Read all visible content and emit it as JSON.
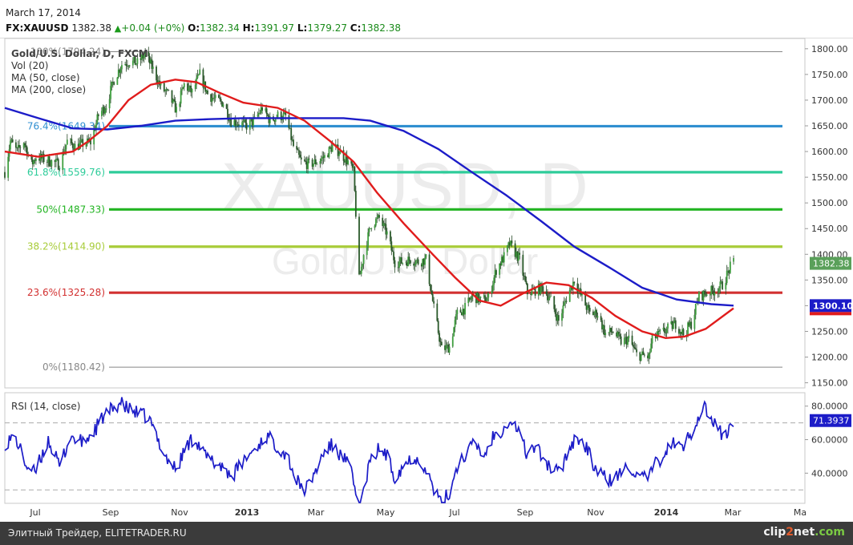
{
  "header": {
    "date": "March 17, 2014",
    "symbol": "FX:XAUUSD",
    "last": "1382.38",
    "change": "+0.04 (+0%)",
    "o_label": "O:",
    "open": "1382.34",
    "h_label": "H:",
    "high": "1391.97",
    "l_label": "L:",
    "low": "1379.27",
    "c_label": "C:",
    "close": "1382.38"
  },
  "legend": {
    "title": "Gold/U.S. Dollar, D, FXCM",
    "vol": "Vol (20)",
    "ma50": "MA (50, close)",
    "ma200": "MA (200, close)",
    "rsi": "RSI (14, close)"
  },
  "watermark": {
    "symbol": "XAUUSD, D",
    "name": "Gold/U.S. Dollar"
  },
  "footer": {
    "text": "Элитный Трейдер, ELITETRADER.RU",
    "logo": "clip2net.com"
  },
  "chart_data": [
    {
      "type": "candlestick",
      "title": "Gold/U.S. Dollar, D, FXCM",
      "ylim": [
        1140,
        1820
      ],
      "y_ticks": [
        1150,
        1200,
        1250,
        1300,
        1350,
        1400,
        1450,
        1500,
        1550,
        1600,
        1650,
        1700,
        1750,
        1800
      ],
      "x_ticks": [
        "Jul",
        "Sep",
        "Nov",
        "2013",
        "Mar",
        "May",
        "Jul",
        "Sep",
        "Nov",
        "2014",
        "Mar",
        "Ma"
      ],
      "last_price_label": "1382.38",
      "ma200_label": "1300.10",
      "fibonacci": [
        {
          "label": "100%(1794.24)",
          "value": 1794.24,
          "color": "#888888"
        },
        {
          "label": "76.4%(1649.34)",
          "value": 1649.34,
          "color": "#2f8fd0"
        },
        {
          "label": "61.8%(1559.76)",
          "value": 1559.76,
          "color": "#2ecc9a"
        },
        {
          "label": "50%(1487.33)",
          "value": 1487.33,
          "color": "#22b422"
        },
        {
          "label": "38.2%(1414.90)",
          "value": 1414.9,
          "color": "#a8cc3a"
        },
        {
          "label": "23.6%(1325.28)",
          "value": 1325.28,
          "color": "#d23030"
        },
        {
          "label": "0%(1180.42)",
          "value": 1180.42,
          "color": "#888888"
        }
      ],
      "price_path": [
        [
          "2012-06-01",
          1560
        ],
        [
          "2012-06-06",
          1620
        ],
        [
          "2012-06-12",
          1600
        ],
        [
          "2012-06-18",
          1620
        ],
        [
          "2012-06-25",
          1575
        ],
        [
          "2012-06-29",
          1590
        ],
        [
          "2012-07-06",
          1585
        ],
        [
          "2012-07-13",
          1580
        ],
        [
          "2012-07-20",
          1575
        ],
        [
          "2012-07-27",
          1620
        ],
        [
          "2012-08-03",
          1610
        ],
        [
          "2012-08-10",
          1615
        ],
        [
          "2012-08-17",
          1618
        ],
        [
          "2012-08-24",
          1670
        ],
        [
          "2012-08-31",
          1690
        ],
        [
          "2012-09-07",
          1740
        ],
        [
          "2012-09-14",
          1770
        ],
        [
          "2012-09-21",
          1775
        ],
        [
          "2012-09-28",
          1772
        ],
        [
          "2012-10-05",
          1790
        ],
        [
          "2012-10-12",
          1760
        ],
        [
          "2012-10-19",
          1725
        ],
        [
          "2012-10-26",
          1710
        ],
        [
          "2012-11-02",
          1680
        ],
        [
          "2012-11-09",
          1730
        ],
        [
          "2012-11-16",
          1715
        ],
        [
          "2012-11-23",
          1750
        ],
        [
          "2012-11-30",
          1712
        ],
        [
          "2012-12-07",
          1700
        ],
        [
          "2012-12-14",
          1695
        ],
        [
          "2012-12-21",
          1660
        ],
        [
          "2012-12-28",
          1656
        ],
        [
          "2013-01-04",
          1650
        ],
        [
          "2013-01-11",
          1660
        ],
        [
          "2013-01-18",
          1685
        ],
        [
          "2013-01-25",
          1660
        ],
        [
          "2013-02-01",
          1670
        ],
        [
          "2013-02-08",
          1668
        ],
        [
          "2013-02-15",
          1610
        ],
        [
          "2013-02-22",
          1580
        ],
        [
          "2013-03-01",
          1575
        ],
        [
          "2013-03-08",
          1580
        ],
        [
          "2013-03-15",
          1590
        ],
        [
          "2013-03-22",
          1610
        ],
        [
          "2013-03-29",
          1598
        ],
        [
          "2013-04-05",
          1580
        ],
        [
          "2013-04-10",
          1560
        ],
        [
          "2013-04-12",
          1480
        ],
        [
          "2013-04-15",
          1350
        ],
        [
          "2013-04-19",
          1400
        ],
        [
          "2013-04-26",
          1460
        ],
        [
          "2013-05-03",
          1470
        ],
        [
          "2013-05-10",
          1440
        ],
        [
          "2013-05-17",
          1385
        ],
        [
          "2013-05-24",
          1385
        ],
        [
          "2013-05-31",
          1390
        ],
        [
          "2013-06-07",
          1385
        ],
        [
          "2013-06-14",
          1390
        ],
        [
          "2013-06-21",
          1295
        ],
        [
          "2013-06-28",
          1215
        ],
        [
          "2013-07-05",
          1220
        ],
        [
          "2013-07-12",
          1285
        ],
        [
          "2013-07-19",
          1295
        ],
        [
          "2013-07-26",
          1320
        ],
        [
          "2013-08-02",
          1310
        ],
        [
          "2013-08-09",
          1315
        ],
        [
          "2013-08-16",
          1370
        ],
        [
          "2013-08-23",
          1395
        ],
        [
          "2013-08-28",
          1420
        ],
        [
          "2013-09-06",
          1390
        ],
        [
          "2013-09-13",
          1325
        ],
        [
          "2013-09-20",
          1330
        ],
        [
          "2013-09-27",
          1335
        ],
        [
          "2013-10-04",
          1310
        ],
        [
          "2013-10-11",
          1270
        ],
        [
          "2013-10-18",
          1315
        ],
        [
          "2013-10-25",
          1350
        ],
        [
          "2013-11-01",
          1315
        ],
        [
          "2013-11-08",
          1285
        ],
        [
          "2013-11-15",
          1285
        ],
        [
          "2013-11-22",
          1245
        ],
        [
          "2013-11-29",
          1250
        ],
        [
          "2013-12-06",
          1230
        ],
        [
          "2013-12-13",
          1235
        ],
        [
          "2013-12-20",
          1205
        ],
        [
          "2013-12-31",
          1200
        ],
        [
          "2014-01-03",
          1235
        ],
        [
          "2014-01-10",
          1245
        ],
        [
          "2014-01-17",
          1255
        ],
        [
          "2014-01-24",
          1265
        ],
        [
          "2014-01-31",
          1245
        ],
        [
          "2014-02-07",
          1265
        ],
        [
          "2014-02-14",
          1318
        ],
        [
          "2014-02-21",
          1325
        ],
        [
          "2014-02-28",
          1330
        ],
        [
          "2014-03-07",
          1340
        ],
        [
          "2014-03-14",
          1375
        ],
        [
          "2014-03-17",
          1382.38
        ]
      ],
      "ma50_path": [
        [
          "2012-06-01",
          1600
        ],
        [
          "2012-07-01",
          1590
        ],
        [
          "2012-08-01",
          1600
        ],
        [
          "2012-08-15",
          1620
        ],
        [
          "2012-09-01",
          1650
        ],
        [
          "2012-09-20",
          1700
        ],
        [
          "2012-10-10",
          1730
        ],
        [
          "2012-11-01",
          1740
        ],
        [
          "2012-11-20",
          1735
        ],
        [
          "2012-12-10",
          1715
        ],
        [
          "2013-01-01",
          1695
        ],
        [
          "2013-02-01",
          1685
        ],
        [
          "2013-02-25",
          1660
        ],
        [
          "2013-03-20",
          1620
        ],
        [
          "2013-04-10",
          1580
        ],
        [
          "2013-05-01",
          1520
        ],
        [
          "2013-05-25",
          1460
        ],
        [
          "2013-06-20",
          1400
        ],
        [
          "2013-07-10",
          1355
        ],
        [
          "2013-08-01",
          1310
        ],
        [
          "2013-08-20",
          1300
        ],
        [
          "2013-09-10",
          1325
        ],
        [
          "2013-09-30",
          1345
        ],
        [
          "2013-10-20",
          1340
        ],
        [
          "2013-11-10",
          1315
        ],
        [
          "2013-12-01",
          1280
        ],
        [
          "2013-12-25",
          1250
        ],
        [
          "2014-01-15",
          1237
        ],
        [
          "2014-02-01",
          1240
        ],
        [
          "2014-02-20",
          1255
        ],
        [
          "2014-03-17",
          1295
        ]
      ],
      "ma200_path": [
        [
          "2012-06-01",
          1685
        ],
        [
          "2012-07-01",
          1665
        ],
        [
          "2012-08-01",
          1645
        ],
        [
          "2012-09-01",
          1643
        ],
        [
          "2012-10-01",
          1650
        ],
        [
          "2012-11-01",
          1660
        ],
        [
          "2012-12-01",
          1663
        ],
        [
          "2013-01-01",
          1665
        ],
        [
          "2013-02-01",
          1665
        ],
        [
          "2013-03-01",
          1665
        ],
        [
          "2013-04-01",
          1665
        ],
        [
          "2013-04-25",
          1660
        ],
        [
          "2013-05-25",
          1640
        ],
        [
          "2013-06-25",
          1605
        ],
        [
          "2013-07-25",
          1560
        ],
        [
          "2013-08-25",
          1515
        ],
        [
          "2013-09-25",
          1465
        ],
        [
          "2013-10-25",
          1415
        ],
        [
          "2013-11-25",
          1375
        ],
        [
          "2013-12-25",
          1335
        ],
        [
          "2014-01-25",
          1312
        ],
        [
          "2014-02-25",
          1303
        ],
        [
          "2014-03-17",
          1300.1
        ]
      ]
    },
    {
      "type": "line",
      "title": "RSI (14, close)",
      "ylim": [
        22,
        88
      ],
      "y_ticks": [
        40,
        60,
        80
      ],
      "y_tick_labels": [
        "40.0000",
        "60.0000",
        "80.0000"
      ],
      "levels": [
        70,
        30
      ],
      "last_value_label": "71.3937",
      "series": [
        {
          "values": [
            [
              "2012-06-01",
              58
            ],
            [
              "2012-06-10",
              62
            ],
            [
              "2012-06-20",
              45
            ],
            [
              "2012-06-28",
              40
            ],
            [
              "2012-07-10",
              60
            ],
            [
              "2012-07-20",
              44
            ],
            [
              "2012-07-30",
              62
            ],
            [
              "2012-08-10",
              58
            ],
            [
              "2012-08-20",
              65
            ],
            [
              "2012-08-28",
              73
            ],
            [
              "2012-09-05",
              78
            ],
            [
              "2012-09-12",
              82
            ],
            [
              "2012-09-20",
              78
            ],
            [
              "2012-10-01",
              75
            ],
            [
              "2012-10-08",
              73
            ],
            [
              "2012-10-15",
              62
            ],
            [
              "2012-10-25",
              48
            ],
            [
              "2012-11-02",
              42
            ],
            [
              "2012-11-10",
              55
            ],
            [
              "2012-11-18",
              62
            ],
            [
              "2012-11-28",
              50
            ],
            [
              "2012-12-06",
              46
            ],
            [
              "2012-12-14",
              44
            ],
            [
              "2012-12-22",
              38
            ],
            [
              "2013-01-02",
              48
            ],
            [
              "2013-01-12",
              55
            ],
            [
              "2013-01-22",
              62
            ],
            [
              "2013-02-01",
              56
            ],
            [
              "2013-02-10",
              50
            ],
            [
              "2013-02-18",
              35
            ],
            [
              "2013-02-26",
              30
            ],
            [
              "2013-03-06",
              40
            ],
            [
              "2013-03-14",
              52
            ],
            [
              "2013-03-22",
              57
            ],
            [
              "2013-03-30",
              50
            ],
            [
              "2013-04-06",
              45
            ],
            [
              "2013-04-12",
              28
            ],
            [
              "2013-04-16",
              20
            ],
            [
              "2013-04-24",
              45
            ],
            [
              "2013-05-03",
              55
            ],
            [
              "2013-05-10",
              50
            ],
            [
              "2013-05-17",
              38
            ],
            [
              "2013-05-25",
              45
            ],
            [
              "2013-06-03",
              50
            ],
            [
              "2013-06-12",
              45
            ],
            [
              "2013-06-20",
              32
            ],
            [
              "2013-06-27",
              22
            ],
            [
              "2013-07-05",
              28
            ],
            [
              "2013-07-12",
              45
            ],
            [
              "2013-07-20",
              52
            ],
            [
              "2013-07-28",
              58
            ],
            [
              "2013-08-05",
              50
            ],
            [
              "2013-08-13",
              62
            ],
            [
              "2013-08-21",
              66
            ],
            [
              "2013-08-28",
              72
            ],
            [
              "2013-09-05",
              66
            ],
            [
              "2013-09-12",
              52
            ],
            [
              "2013-09-20",
              56
            ],
            [
              "2013-09-28",
              48
            ],
            [
              "2013-10-05",
              42
            ],
            [
              "2013-10-12",
              40
            ],
            [
              "2013-10-20",
              55
            ],
            [
              "2013-10-28",
              62
            ],
            [
              "2013-11-05",
              55
            ],
            [
              "2013-11-12",
              44
            ],
            [
              "2013-11-20",
              38
            ],
            [
              "2013-11-28",
              35
            ],
            [
              "2013-12-06",
              40
            ],
            [
              "2013-12-14",
              45
            ],
            [
              "2013-12-22",
              36
            ],
            [
              "2013-12-31",
              38
            ],
            [
              "2014-01-06",
              45
            ],
            [
              "2014-01-14",
              52
            ],
            [
              "2014-01-22",
              58
            ],
            [
              "2014-01-30",
              55
            ],
            [
              "2014-02-06",
              63
            ],
            [
              "2014-02-14",
              75
            ],
            [
              "2014-02-19",
              80
            ],
            [
              "2014-02-26",
              70
            ],
            [
              "2014-03-03",
              66
            ],
            [
              "2014-03-10",
              62
            ],
            [
              "2014-03-17",
              71.3937
            ]
          ]
        }
      ]
    }
  ]
}
